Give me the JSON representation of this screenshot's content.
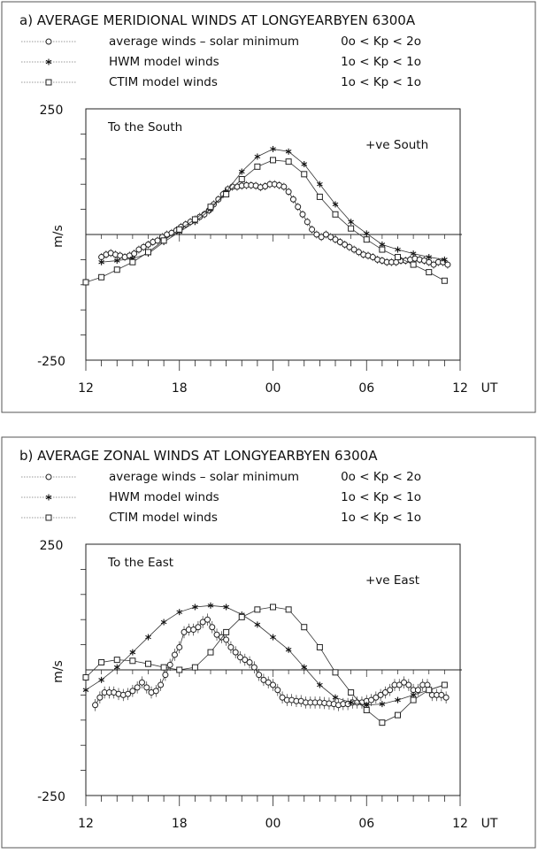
{
  "chart_data": [
    {
      "type": "line",
      "title": "a) AVERAGE MERIDIONAL WINDS AT LONGYEARBYEN 6300A",
      "xlabel": "UT",
      "ylabel": "m/s",
      "ylim": [
        -250,
        250
      ],
      "x_ticks": [
        "12",
        "18",
        "00",
        "06",
        "12"
      ],
      "y_ticks": [
        "250",
        "-250"
      ],
      "annotation_left": "To the South",
      "annotation_right": "+ve South",
      "legend": [
        {
          "label": "average winds – solar minimum",
          "condition": "0o < Kp < 2o",
          "marker": "circle"
        },
        {
          "label": "HWM model winds",
          "condition": "1o < Kp < 1o",
          "marker": "star"
        },
        {
          "label": "CTIM model winds",
          "condition": "1o < Kp < 1o",
          "marker": "square"
        }
      ],
      "series": [
        {
          "name": "average winds – solar minimum",
          "marker": "circle",
          "x": [
            13.0,
            13.3,
            13.6,
            13.9,
            14.2,
            14.5,
            14.8,
            15.1,
            15.4,
            15.7,
            16.0,
            16.3,
            16.6,
            16.9,
            17.2,
            17.5,
            17.8,
            18.1,
            18.4,
            18.7,
            19.0,
            19.3,
            19.6,
            19.9,
            20.2,
            20.5,
            20.8,
            21.1,
            21.4,
            21.7,
            22.0,
            22.3,
            22.6,
            22.9,
            23.2,
            23.5,
            23.8,
            24.1,
            24.4,
            24.7,
            25.0,
            25.3,
            25.6,
            25.9,
            26.2,
            26.5,
            26.8,
            27.1,
            27.4,
            27.7,
            28.0,
            28.3,
            28.6,
            28.9,
            29.2,
            29.5,
            29.8,
            30.1,
            30.4,
            30.7,
            31.0,
            31.3,
            31.6,
            31.9,
            32.2,
            32.5,
            32.8,
            33.1,
            33.4,
            33.7,
            34.0,
            34.3,
            34.6,
            34.9,
            35.2
          ],
          "values": [
            -45,
            -40,
            -37,
            -40,
            -42,
            -45,
            -42,
            -38,
            -30,
            -25,
            -20,
            -15,
            -12,
            -5,
            0,
            3,
            8,
            15,
            20,
            25,
            30,
            35,
            40,
            48,
            60,
            70,
            80,
            90,
            95,
            95,
            97,
            98,
            98,
            97,
            94,
            96,
            100,
            100,
            98,
            95,
            85,
            70,
            55,
            40,
            25,
            10,
            0,
            -5,
            0,
            -5,
            -10,
            -15,
            -20,
            -25,
            -30,
            -35,
            -40,
            -42,
            -45,
            -50,
            -52,
            -55,
            -55,
            -55,
            -52,
            -52,
            -50,
            -48,
            -50,
            -52,
            -55,
            -60,
            -55,
            -55,
            -60
          ],
          "error": 8
        },
        {
          "name": "HWM model winds",
          "marker": "star",
          "x": [
            13.0,
            14.0,
            15.0,
            16.0,
            17.0,
            18.0,
            19.0,
            20.0,
            21.0,
            22.0,
            23.0,
            24.0,
            25.0,
            26.0,
            27.0,
            28.0,
            29.0,
            30.0,
            31.0,
            32.0,
            33.0,
            34.0,
            35.0
          ],
          "values": [
            -55,
            -52,
            -48,
            -38,
            -15,
            5,
            25,
            50,
            85,
            125,
            155,
            170,
            165,
            140,
            100,
            60,
            25,
            2,
            -20,
            -30,
            -38,
            -45,
            -50
          ]
        },
        {
          "name": "CTIM model winds",
          "marker": "square",
          "x": [
            12.0,
            13.0,
            14.0,
            15.0,
            16.0,
            17.0,
            18.0,
            19.0,
            20.0,
            21.0,
            22.0,
            23.0,
            24.0,
            25.0,
            26.0,
            27.0,
            28.0,
            29.0,
            30.0,
            31.0,
            32.0,
            33.0,
            34.0,
            35.0
          ],
          "values": [
            -95,
            -85,
            -70,
            -55,
            -35,
            -12,
            10,
            30,
            55,
            80,
            110,
            135,
            148,
            145,
            120,
            75,
            40,
            12,
            -10,
            -30,
            -45,
            -60,
            -75,
            -92
          ]
        }
      ]
    },
    {
      "type": "line",
      "title": "b) AVERAGE ZONAL WINDS AT LONGYEARBYEN 6300A",
      "xlabel": "UT",
      "ylabel": "m/s",
      "ylim": [
        -250,
        250
      ],
      "x_ticks": [
        "12",
        "18",
        "00",
        "06",
        "12"
      ],
      "y_ticks": [
        "250",
        "-250"
      ],
      "annotation_left": "To the East",
      "annotation_right": "+ve East",
      "legend": [
        {
          "label": "average winds – solar minimum",
          "condition": "0o < Kp < 2o",
          "marker": "circle"
        },
        {
          "label": "HWM model winds",
          "condition": "1o < Kp < 1o",
          "marker": "star"
        },
        {
          "label": "CTIM model winds",
          "condition": "1o < Kp < 1o",
          "marker": "square"
        }
      ],
      "series": [
        {
          "name": "average winds – solar minimum",
          "marker": "circle",
          "x": [
            12.6,
            12.9,
            13.2,
            13.5,
            13.8,
            14.1,
            14.4,
            14.7,
            15.0,
            15.3,
            15.6,
            15.9,
            16.2,
            16.5,
            16.8,
            17.1,
            17.4,
            17.7,
            18.0,
            18.3,
            18.6,
            18.9,
            19.2,
            19.5,
            19.8,
            20.1,
            20.4,
            20.7,
            21.0,
            21.3,
            21.6,
            21.9,
            22.2,
            22.5,
            22.8,
            23.1,
            23.4,
            23.7,
            24.0,
            24.3,
            24.6,
            24.9,
            25.2,
            25.5,
            25.8,
            26.1,
            26.4,
            26.7,
            27.0,
            27.3,
            27.6,
            27.9,
            28.2,
            28.5,
            28.8,
            29.1,
            29.4,
            29.7,
            30.0,
            30.3,
            30.6,
            30.9,
            31.2,
            31.5,
            31.8,
            32.1,
            32.4,
            32.7,
            33.0,
            33.3,
            33.6,
            33.9,
            34.2,
            34.5,
            34.8,
            35.1
          ],
          "values": [
            -70,
            -55,
            -45,
            -45,
            -45,
            -48,
            -50,
            -48,
            -42,
            -35,
            -25,
            -35,
            -45,
            -42,
            -30,
            -10,
            10,
            30,
            45,
            75,
            80,
            80,
            85,
            95,
            100,
            85,
            70,
            65,
            60,
            45,
            35,
            25,
            20,
            15,
            5,
            -10,
            -20,
            -25,
            -30,
            -40,
            -55,
            -60,
            -60,
            -62,
            -62,
            -65,
            -65,
            -65,
            -65,
            -66,
            -67,
            -68,
            -70,
            -68,
            -68,
            -65,
            -65,
            -65,
            -62,
            -60,
            -55,
            -50,
            -45,
            -40,
            -30,
            -30,
            -25,
            -30,
            -40,
            -40,
            -30,
            -30,
            -50,
            -50,
            -50,
            -55
          ],
          "error": 12
        },
        {
          "name": "HWM model winds",
          "marker": "star",
          "x": [
            12.0,
            13.0,
            14.0,
            15.0,
            16.0,
            17.0,
            18.0,
            19.0,
            20.0,
            21.0,
            22.0,
            23.0,
            24.0,
            25.0,
            26.0,
            27.0,
            28.0,
            29.0,
            30.0,
            31.0,
            32.0,
            33.0,
            34.0,
            35.0
          ],
          "values": [
            -40,
            -20,
            5,
            35,
            65,
            95,
            115,
            125,
            128,
            125,
            110,
            90,
            65,
            40,
            5,
            -30,
            -55,
            -65,
            -70,
            -68,
            -60,
            -50,
            -40,
            -30
          ]
        },
        {
          "name": "CTIM model winds",
          "marker": "square",
          "x": [
            12.0,
            13.0,
            14.0,
            15.0,
            16.0,
            17.0,
            18.0,
            19.0,
            20.0,
            21.0,
            22.0,
            23.0,
            24.0,
            25.0,
            26.0,
            27.0,
            28.0,
            29.0,
            30.0,
            31.0,
            32.0,
            33.0,
            34.0,
            35.0
          ],
          "values": [
            -15,
            15,
            20,
            18,
            12,
            5,
            0,
            5,
            35,
            75,
            105,
            120,
            125,
            120,
            85,
            45,
            -5,
            -45,
            -80,
            -105,
            -90,
            -60,
            -40,
            -30
          ]
        }
      ]
    }
  ]
}
